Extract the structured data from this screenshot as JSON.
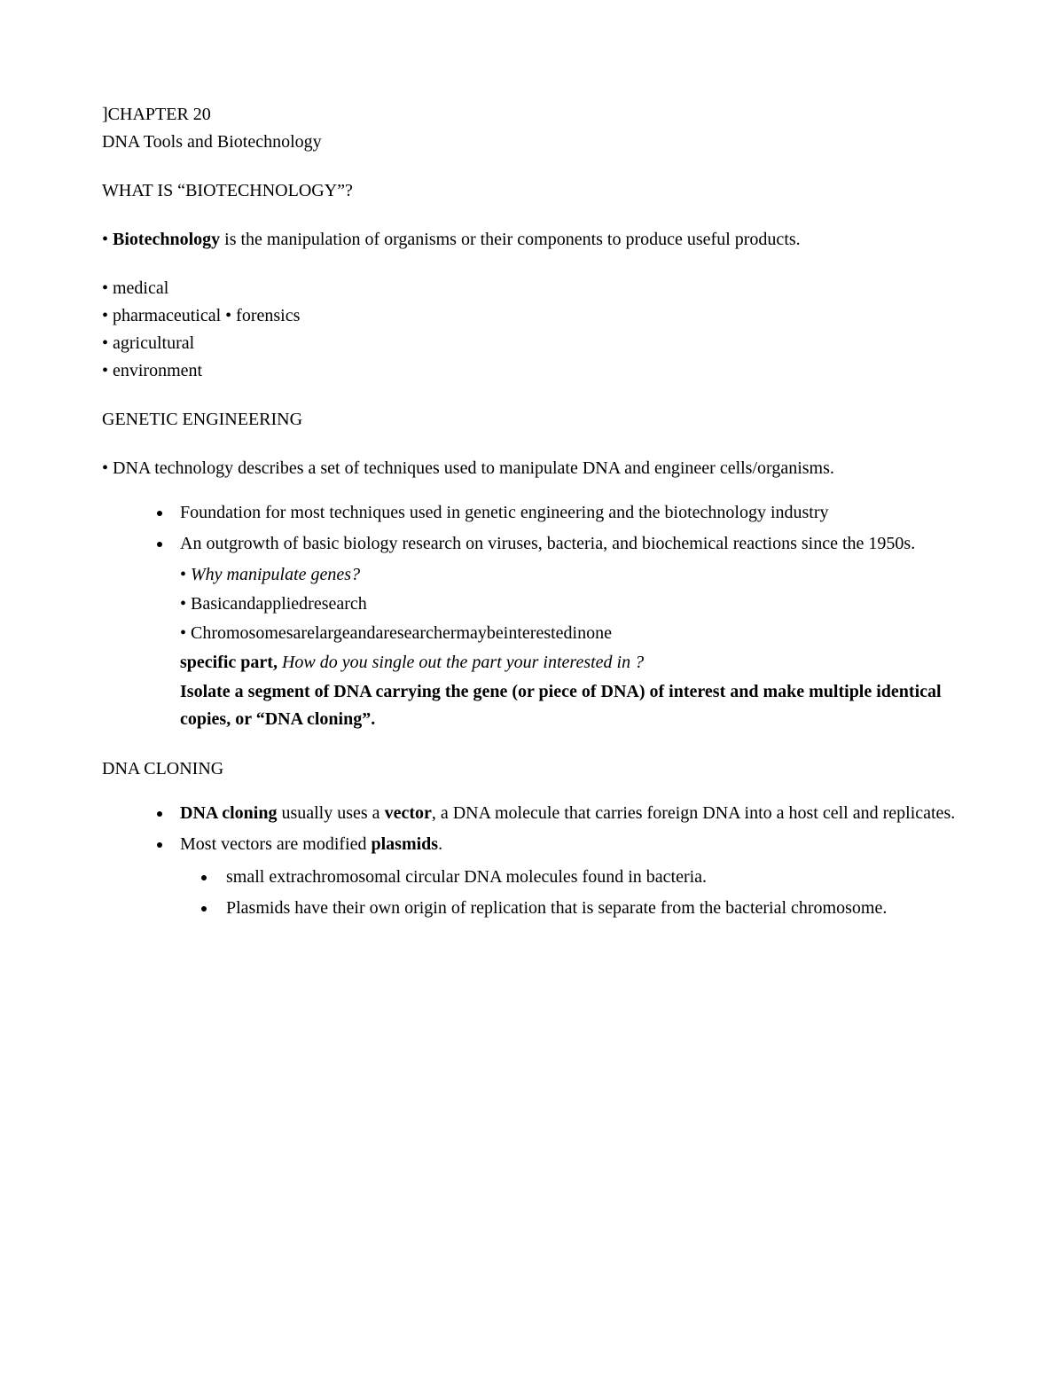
{
  "header": {
    "chapter": "]CHAPTER 20",
    "subtitle": "DNA Tools and Biotechnology"
  },
  "s1": {
    "heading": "WHAT IS “BIOTECHNOLOGY”?",
    "bullet_prefix": "• ",
    "bio_bold": "Biotechnology",
    "bio_rest": " is the manipulation of organisms or their components to produce useful products.",
    "items": {
      "i1": "• medical",
      "i2": "• pharmaceutical • forensics",
      "i3": "• agricultural",
      "i4": "• environment"
    }
  },
  "s2": {
    "heading": "GENETIC ENGINEERING",
    "intro": "• DNA technology describes a set of techniques used to manipulate DNA and engineer cells/organisms.",
    "b1": "Foundation for most techniques used in genetic engineering and the biotechnology industry",
    "b2": "An outgrowth of basic biology research on viruses, bacteria, and biochemical reactions since the 1950s.",
    "sub1_prefix": "• ",
    "sub1_italic": "Why manipulate genes?",
    "sub2": "• Basicandappliedresearch",
    "sub3": "• Chromosomesarelargeandaresearchermaybeinterestedinone",
    "sub4_bold": "specific part, ",
    "sub4_italic": "How do you single out the part your interested in ?",
    "sub5_a": "Isolate a segment of DNA carrying the gene (or piece of DNA) of interest and make multiple identical copies, or “",
    "sub5_bold": "DNA cloning",
    "sub5_b": "”."
  },
  "s3": {
    "heading": "DNA CLONING",
    "b1_bold1": "DNA cloning",
    "b1_mid": " usually uses a ",
    "b1_bold2": "vector",
    "b1_rest": ", a DNA molecule that carries foreign DNA into a host cell and replicates.",
    "b2_a": "Most vectors are modified ",
    "b2_bold": "plasmids",
    "b2_b": ".",
    "sb1": "small extrachromosomal circular DNA molecules found in bacteria.",
    "sb2": "Plasmids have their own origin of replication that is separate from the bacterial chromosome."
  }
}
